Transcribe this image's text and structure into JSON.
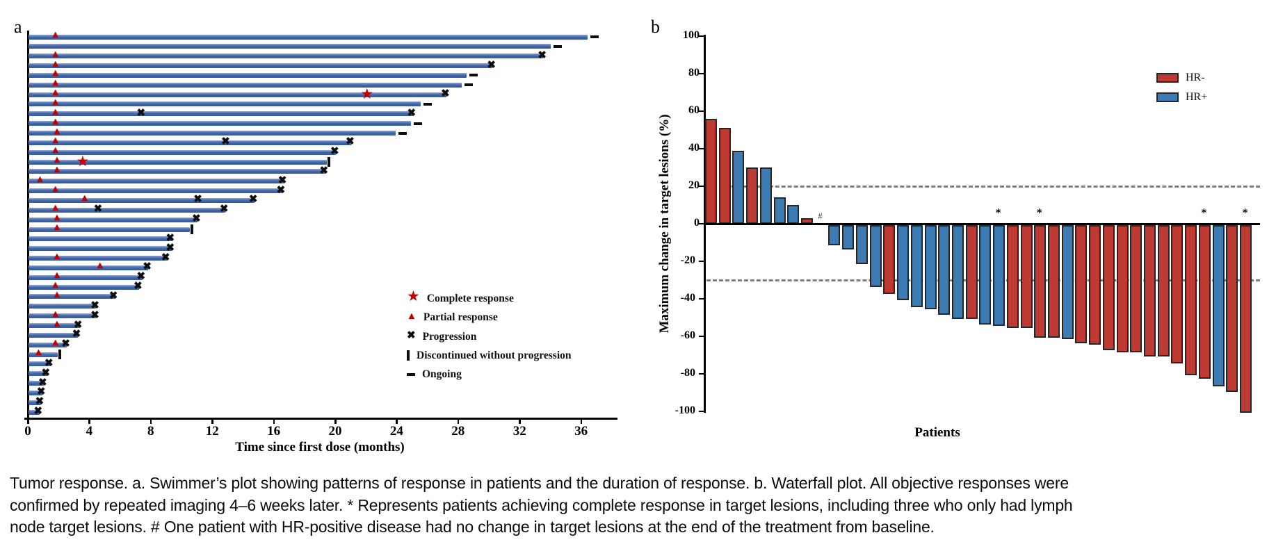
{
  "figure": {
    "panel_a": {
      "label": "a",
      "legend": [
        {
          "symbol": "star",
          "label": "Complete response"
        },
        {
          "symbol": "triangle",
          "label": "Partial response"
        },
        {
          "symbol": "cross",
          "label": "Progression"
        },
        {
          "symbol": "vbar",
          "label": "Discontinued without progression"
        },
        {
          "symbol": "dash",
          "label": "Ongoing"
        }
      ]
    },
    "panel_b": {
      "label": "b",
      "zero_change_marker": "#",
      "complete_response_marker": "*",
      "legend": [
        {
          "label": "HR-",
          "color": "#bf3a32"
        },
        {
          "label": "HR+",
          "color": "#3d7bb5"
        }
      ]
    },
    "caption": "Tumor response. a. Swimmer’s plot showing patterns of response in patients and the duration of response. b. Waterfall plot. All objective responses were confirmed by repeated imaging 4–6 weeks later. * Represents patients achieving complete response in target lesions, including three who only had lymph node target lesions. # One patient with HR-positive disease had no change in target lesions at the end of the treatment from baseline."
  },
  "colors": {
    "swimmer_bar": "#3d64a8",
    "response_marker_red": "#c00000",
    "hr_negative": "#bf3a32",
    "hr_positive": "#3d7bb5",
    "bar_outline": "#262626",
    "reference_dash": "#7d7d7d"
  },
  "chart_data": [
    {
      "type": "bar",
      "subtype": "swimmer",
      "orientation": "horizontal",
      "title": "Swimmer plot of response duration",
      "xlabel": "Time since first dose (months)",
      "xlim": [
        0,
        38
      ],
      "x_ticks": [
        0,
        4,
        8,
        12,
        16,
        20,
        24,
        28,
        32,
        36
      ],
      "marker_meanings": {
        "cr": "Complete response (red star)",
        "pr": "Partial response (red triangle)",
        "mid_x": "Progression (black cross)",
        "end_progression": "Progression at end of bar",
        "end_discontinued": "Discontinued without progression",
        "end_ongoing": "Ongoing"
      },
      "bars": [
        {
          "months": 36.4,
          "pr": 1.8,
          "end": "ongoing"
        },
        {
          "months": 34.0,
          "end": "ongoing"
        },
        {
          "months": 33.5,
          "pr": 1.8,
          "end": "progression"
        },
        {
          "months": 30.2,
          "pr": 1.8,
          "end": "progression"
        },
        {
          "months": 28.5,
          "pr": 1.8,
          "end": "ongoing"
        },
        {
          "months": 28.2,
          "pr": 1.8,
          "end": "ongoing"
        },
        {
          "months": 27.2,
          "pr": 1.8,
          "cr": 22.1,
          "end": "progression"
        },
        {
          "months": 25.5,
          "pr": 1.8,
          "end": "ongoing"
        },
        {
          "months": 25.0,
          "pr": 1.8,
          "mid_x": 7.4,
          "end": "progression"
        },
        {
          "months": 24.9,
          "pr": 1.8,
          "end": "ongoing"
        },
        {
          "months": 23.9,
          "pr": 1.9,
          "end": "ongoing"
        },
        {
          "months": 21.0,
          "pr": 1.8,
          "mid_x": 12.9,
          "end": "progression"
        },
        {
          "months": 20.0,
          "pr": 1.8,
          "end": "progression"
        },
        {
          "months": 19.4,
          "pr": 1.9,
          "cr": 3.6,
          "end": "discontinued"
        },
        {
          "months": 19.3,
          "pr": 1.9,
          "end": "progression"
        },
        {
          "months": 16.6,
          "pr": 0.8,
          "end": "progression"
        },
        {
          "months": 16.5,
          "pr": 1.8,
          "end": "progression"
        },
        {
          "months": 14.7,
          "pr": 3.7,
          "mid_x": 11.1,
          "end": "progression"
        },
        {
          "months": 12.8,
          "pr": 1.8,
          "mid_x": 4.6,
          "end": "progression"
        },
        {
          "months": 11.0,
          "pr": 1.9,
          "end": "progression"
        },
        {
          "months": 10.5,
          "pr": 1.9,
          "end": "discontinued"
        },
        {
          "months": 9.3,
          "end": "progression"
        },
        {
          "months": 9.3,
          "end": "progression"
        },
        {
          "months": 9.0,
          "pr": 1.9,
          "end": "progression"
        },
        {
          "months": 7.8,
          "pr": 4.7,
          "end": "progression"
        },
        {
          "months": 7.4,
          "pr": 1.9,
          "end": "progression"
        },
        {
          "months": 7.2,
          "pr": 1.8,
          "end": "progression"
        },
        {
          "months": 5.6,
          "pr": 1.9,
          "end": "progression"
        },
        {
          "months": 4.4,
          "end": "progression"
        },
        {
          "months": 4.4,
          "pr": 1.8,
          "end": "progression"
        },
        {
          "months": 3.3,
          "pr": 1.9,
          "end": "progression"
        },
        {
          "months": 3.2,
          "end": "progression"
        },
        {
          "months": 2.5,
          "pr": 1.8,
          "end": "progression"
        },
        {
          "months": 1.9,
          "pr": 0.7,
          "end": "discontinued"
        },
        {
          "months": 1.4,
          "end": "progression"
        },
        {
          "months": 1.2,
          "end": "progression"
        },
        {
          "months": 1.0,
          "end": "progression"
        },
        {
          "months": 0.9,
          "end": "progression"
        },
        {
          "months": 0.8,
          "end": "progression"
        },
        {
          "months": 0.7,
          "end": "progression"
        }
      ]
    },
    {
      "type": "bar",
      "subtype": "waterfall",
      "title": "Waterfall plot of maximum change in target lesions",
      "ylabel": "Maximum change in target lesions (%)",
      "xlabel": "Patients",
      "ylim": [
        -100,
        100
      ],
      "y_ticks": [
        100,
        80,
        60,
        40,
        20,
        0,
        -20,
        -40,
        -60,
        -80,
        -100
      ],
      "reference_lines": [
        20,
        -30
      ],
      "legend_position": "upper right",
      "series_colors": {
        "HR-": "#bf3a32",
        "HR+": "#3d7bb5"
      },
      "patients": [
        {
          "value": 56,
          "group": "HR-"
        },
        {
          "value": 51,
          "group": "HR-"
        },
        {
          "value": 39,
          "group": "HR+"
        },
        {
          "value": 30,
          "group": "HR-"
        },
        {
          "value": 30,
          "group": "HR+"
        },
        {
          "value": 14,
          "group": "HR+"
        },
        {
          "value": 10,
          "group": "HR+"
        },
        {
          "value": 3,
          "group": "HR-"
        },
        {
          "value": 0,
          "group": "HR+",
          "note": "#"
        },
        {
          "value": -11,
          "group": "HR+"
        },
        {
          "value": -13,
          "group": "HR+"
        },
        {
          "value": -21,
          "group": "HR+"
        },
        {
          "value": -33,
          "group": "HR+"
        },
        {
          "value": -37,
          "group": "HR-"
        },
        {
          "value": -40,
          "group": "HR+"
        },
        {
          "value": -44,
          "group": "HR+"
        },
        {
          "value": -45,
          "group": "HR+"
        },
        {
          "value": -48,
          "group": "HR+"
        },
        {
          "value": -50,
          "group": "HR+"
        },
        {
          "value": -50,
          "group": "HR-"
        },
        {
          "value": -53,
          "group": "HR+"
        },
        {
          "value": -54,
          "group": "HR+",
          "note": "*"
        },
        {
          "value": -55,
          "group": "HR-"
        },
        {
          "value": -55,
          "group": "HR-"
        },
        {
          "value": -60,
          "group": "HR-",
          "note": "*"
        },
        {
          "value": -60,
          "group": "HR-"
        },
        {
          "value": -61,
          "group": "HR+"
        },
        {
          "value": -63,
          "group": "HR-"
        },
        {
          "value": -64,
          "group": "HR-"
        },
        {
          "value": -67,
          "group": "HR-"
        },
        {
          "value": -68,
          "group": "HR-"
        },
        {
          "value": -68,
          "group": "HR-"
        },
        {
          "value": -70,
          "group": "HR-"
        },
        {
          "value": -70,
          "group": "HR-"
        },
        {
          "value": -74,
          "group": "HR-"
        },
        {
          "value": -80,
          "group": "HR-"
        },
        {
          "value": -82,
          "group": "HR-",
          "note": "*"
        },
        {
          "value": -86,
          "group": "HR+"
        },
        {
          "value": -89,
          "group": "HR-"
        },
        {
          "value": -100,
          "group": "HR-",
          "note": "*"
        }
      ]
    }
  ]
}
